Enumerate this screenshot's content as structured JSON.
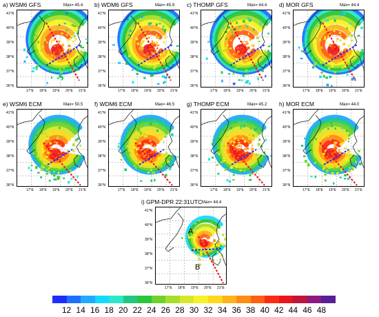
{
  "panels": [
    {
      "title": "a) WSM6 GFS",
      "max": "Max= 45.4",
      "style": "gfs"
    },
    {
      "title": "b) WDM6 GFS",
      "max": "Max= 45.9",
      "style": "gfs"
    },
    {
      "title": "c) THOMP GFS",
      "max": "Max= 44.4",
      "style": "gfs"
    },
    {
      "title": "d) MOR GFS",
      "max": "Max= 44.4",
      "style": "gfs"
    },
    {
      "title": "e) WSM6 ECM",
      "max": "Max= 50.5",
      "style": "ecm"
    },
    {
      "title": "f) WDM6 ECM",
      "max": "Max= 46.5",
      "style": "ecm"
    },
    {
      "title": "g) THOMP ECM",
      "max": "Max= 45.2",
      "style": "ecm"
    },
    {
      "title": "h) MOR ECM",
      "max": "Max= 44.0",
      "style": "ecm"
    },
    {
      "title": "i) GPM-DPR 22:31UTC",
      "max": "Max= 44.4",
      "style": "gpm"
    }
  ],
  "lat_labels": [
    "41°N",
    "40°N",
    "39°N",
    "38°N",
    "37°N",
    "36°N"
  ],
  "lon_labels": [
    "17°E",
    "18°E",
    "19°E",
    "20°E",
    "21°E"
  ],
  "point_labels": {
    "a": "A",
    "b": "B"
  },
  "colorbar": {
    "labels": [
      "12",
      "14",
      "16",
      "18",
      "20",
      "22",
      "24",
      "26",
      "28",
      "30",
      "32",
      "34",
      "36",
      "38",
      "40",
      "42",
      "44",
      "46",
      "48"
    ],
    "colors": [
      "#1f2cff",
      "#1f6fff",
      "#22a9ff",
      "#14d9ff",
      "#2ae8c8",
      "#22c880",
      "#2cc43a",
      "#6ed22a",
      "#a8dd2a",
      "#d8e62a",
      "#f7f227",
      "#ffd81c",
      "#ffb219",
      "#ff8c14",
      "#ff5f14",
      "#ff2a14",
      "#e8141e",
      "#c0143a",
      "#8c1a82",
      "#5a1e96"
    ]
  },
  "colors": {
    "coast": "#222222",
    "grid": "#888888",
    "track_red": "#e8141e",
    "track_blue": "#1f2cff"
  }
}
